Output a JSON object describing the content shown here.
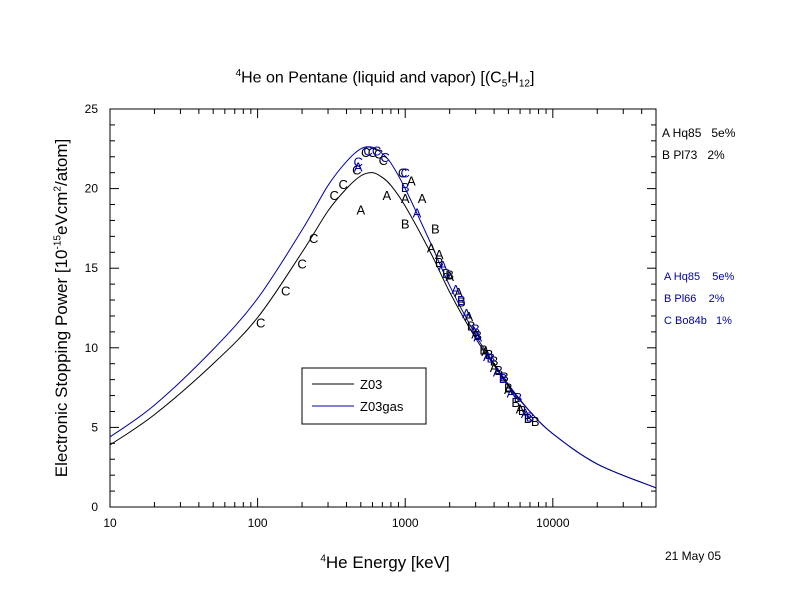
{
  "chart_data": {
    "type": "line",
    "title": {
      "sup": "4",
      "pre": "He on Pentane (liquid and vapor) [(C",
      "sub1": "5",
      "mid": "H",
      "sub2": "12",
      "post": "]"
    },
    "ylabel": {
      "pre": "Electronic Stopping Power [10",
      "sup1": "-15",
      "mid": "eVcm",
      "sup2": "2",
      "post": "/atom]"
    },
    "xlabel": {
      "sup": "4",
      "text": "He Energy [keV]"
    },
    "xscale": "log",
    "xlim": [
      10,
      50000
    ],
    "ylim": [
      0,
      25
    ],
    "xticks": [
      "10",
      "100",
      "1000",
      "10000"
    ],
    "yticks": [
      "0",
      "5",
      "10",
      "15",
      "20",
      "25"
    ],
    "series": [
      {
        "name": "Z03",
        "color": "#000000",
        "x": [
          10,
          20,
          50,
          100,
          200,
          300,
          400,
          500,
          600,
          700,
          800,
          1000,
          1500,
          2000,
          3000,
          4000,
          5000,
          7000,
          10000,
          20000,
          50000
        ],
        "y": [
          3.9,
          5.8,
          9.0,
          11.9,
          16.0,
          18.6,
          20.0,
          20.8,
          21.0,
          20.7,
          20.2,
          18.9,
          15.9,
          13.5,
          10.6,
          8.9,
          7.6,
          6.0,
          4.6,
          2.7,
          1.2
        ]
      },
      {
        "name": "Z03gas",
        "color": "#0000aa",
        "x": [
          10,
          20,
          50,
          100,
          200,
          300,
          400,
          500,
          600,
          700,
          800,
          1000,
          1500,
          2000,
          3000,
          4000,
          5000,
          7000,
          10000,
          20000,
          50000
        ],
        "y": [
          4.4,
          6.4,
          9.9,
          13.1,
          17.4,
          20.2,
          21.7,
          22.5,
          22.6,
          22.2,
          21.6,
          20.0,
          16.5,
          13.9,
          10.8,
          9.0,
          7.7,
          6.0,
          4.6,
          2.7,
          1.2
        ]
      }
    ],
    "points": [
      {
        "label": "A",
        "color": "#000000",
        "x": [
          500,
          750,
          1000,
          1100,
          1300,
          1500,
          1700,
          2000,
          2300,
          2700,
          3000,
          3500,
          4000,
          5000,
          6000
        ],
        "y": [
          18.7,
          19.6,
          19.4,
          20.5,
          19.4,
          16.3,
          15.9,
          14.5,
          13.5,
          12.0,
          10.9,
          9.8,
          8.8,
          7.4,
          6.2
        ]
      },
      {
        "label": "B",
        "color": "#000000",
        "x": [
          1000,
          1600,
          1700,
          2000,
          2400,
          2800,
          3100,
          3400,
          3700,
          4000,
          4300,
          4700,
          5000,
          5600,
          6200,
          6800,
          7600
        ],
        "y": [
          17.8,
          17.5,
          15.4,
          14.6,
          12.9,
          11.4,
          10.8,
          9.9,
          9.6,
          9.2,
          8.6,
          8.2,
          7.5,
          6.6,
          6.1,
          5.6,
          5.4
        ]
      },
      {
        "label": "C",
        "color": "#000000",
        "x": [
          105,
          155,
          200,
          240,
          330,
          380,
          470,
          540,
          600,
          660,
          710,
          960
        ],
        "y": [
          11.6,
          13.6,
          15.3,
          16.9,
          19.6,
          20.3,
          21.2,
          22.3,
          22.3,
          22.2,
          21.8,
          21.0
        ]
      },
      {
        "label": "A",
        "color": "#0000aa",
        "x": [
          480,
          1200,
          1800,
          2200,
          2600,
          3100,
          3600,
          4200,
          5200,
          6500
        ],
        "y": [
          21.4,
          18.5,
          15.2,
          13.7,
          12.2,
          10.7,
          9.5,
          8.5,
          7.2,
          5.9
        ]
      },
      {
        "label": "B",
        "color": "#0000aa",
        "x": [
          1000,
          1900,
          2400,
          3000,
          3800,
          4600,
          5800,
          7000
        ],
        "y": [
          20.1,
          14.7,
          13.0,
          11.2,
          9.4,
          8.1,
          6.9,
          5.7
        ]
      },
      {
        "label": "C",
        "color": "#0000aa",
        "x": [
          480,
          560,
          640,
          730,
          1000
        ],
        "y": [
          21.7,
          22.4,
          22.4,
          22.0,
          21.0
        ]
      }
    ],
    "legend": {
      "position": "center-bottom",
      "items": [
        "Z03",
        "Z03gas"
      ]
    },
    "side_legend_black": [
      "A Hq85   5e%",
      "B Pl73   2%"
    ],
    "side_legend_blue": [
      "A Hq85    5e%",
      "B Pl66    2%",
      "C Bo84b   1%"
    ],
    "date": "21 May 05"
  }
}
